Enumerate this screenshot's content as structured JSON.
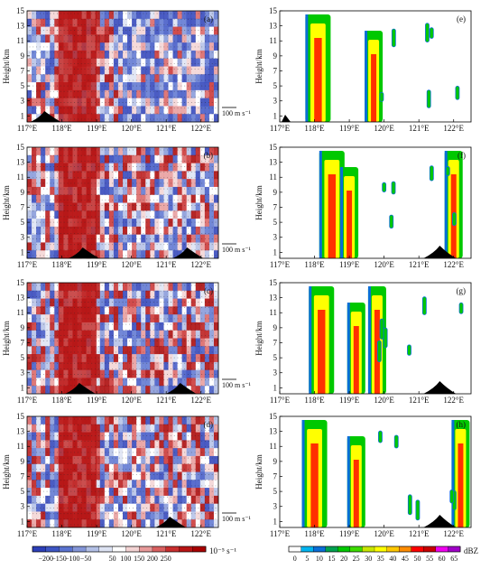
{
  "ylabel": "Height/km",
  "vector_ref_label": "100 m s⁻¹",
  "chart_data": {
    "type": "heatmap",
    "panels_left": [
      {
        "id": "a",
        "tag": "(a)",
        "variable": "divergence",
        "terrain_peaks": [
          117.5
        ]
      },
      {
        "id": "b",
        "tag": "(b)",
        "variable": "divergence",
        "terrain_peaks": [
          118.6,
          121.6
        ]
      },
      {
        "id": "c",
        "tag": "(c)",
        "variable": "divergence",
        "terrain_peaks": [
          118.5,
          121.4
        ]
      },
      {
        "id": "d",
        "tag": "(d)",
        "variable": "divergence",
        "terrain_peaks": [
          121.1
        ]
      }
    ],
    "panels_right": [
      {
        "id": "e",
        "tag": "(e)",
        "variable": "reflectivity",
        "echo_cores_lon": [
          118.1,
          119.7
        ]
      },
      {
        "id": "f",
        "tag": "(f)",
        "variable": "reflectivity",
        "echo_cores_lon": [
          118.5,
          119.0,
          122.0
        ]
      },
      {
        "id": "g",
        "tag": "(g)",
        "variable": "reflectivity",
        "echo_cores_lon": [
          118.2,
          119.2,
          119.8
        ]
      },
      {
        "id": "h",
        "tag": "(h)",
        "variable": "reflectivity",
        "echo_cores_lon": [
          118.0,
          119.2,
          122.2
        ]
      }
    ],
    "x_ticks": [
      "117°E",
      "118°E",
      "119°E",
      "120°E",
      "121°E",
      "122°E"
    ],
    "x_values": [
      117,
      118,
      119,
      120,
      121,
      122
    ],
    "xlim": [
      117,
      122.5
    ],
    "y_ticks": [
      "1",
      "3",
      "5",
      "7",
      "9",
      "11",
      "13",
      "15"
    ],
    "y_values": [
      1,
      3,
      5,
      7,
      9,
      11,
      13,
      15
    ],
    "ylim": [
      0.2,
      15
    ],
    "colorbar_left": {
      "ticks": [
        "−200",
        "−150",
        "−100",
        "−50",
        "50",
        "100",
        "150",
        "200",
        "250"
      ],
      "unit": "10⁻⁵ s⁻¹",
      "colors": [
        "#2c3fb8",
        "#3d55c4",
        "#5a73d0",
        "#8496d8",
        "#b3c0e6",
        "#dde3f3",
        "#ffffff",
        "#f3d3d3",
        "#e89a9a",
        "#d96060",
        "#c92e2e",
        "#b81414",
        "#a80000"
      ]
    },
    "colorbar_right": {
      "ticks": [
        "0",
        "5",
        "10",
        "15",
        "20",
        "25",
        "30",
        "35",
        "40",
        "45",
        "50",
        "55",
        "60",
        "65"
      ],
      "unit": "dBZ",
      "colors": [
        "#ffffff",
        "#00b4f0",
        "#0a6ed8",
        "#00a050",
        "#00c800",
        "#3cdc00",
        "#c8e600",
        "#ffff00",
        "#ffc800",
        "#ff8c00",
        "#ff0000",
        "#c80000",
        "#f000f0",
        "#a000c8"
      ]
    }
  }
}
